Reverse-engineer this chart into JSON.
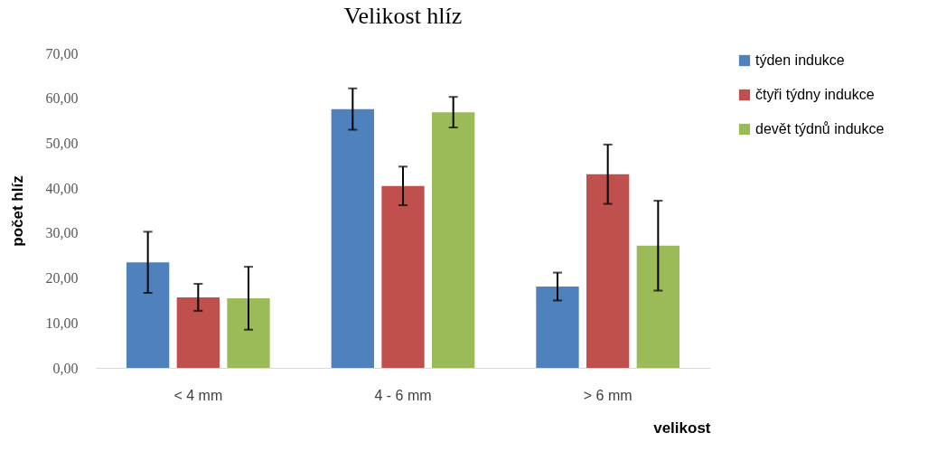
{
  "chart_data": {
    "type": "bar",
    "title": "Velikost hlíz",
    "xlabel": "velikost",
    "ylabel": "počet hlíz",
    "categories": [
      "< 4 mm",
      "4 - 6 mm",
      "> 6 mm"
    ],
    "series": [
      {
        "name": "týden indukce",
        "color": "#4f81bd",
        "values": [
          23.5,
          57.6,
          18.1
        ],
        "errors": [
          6.8,
          4.6,
          3.1
        ]
      },
      {
        "name": "čtyři týdny indukce",
        "color": "#c0504d",
        "values": [
          15.7,
          40.5,
          43.1
        ],
        "errors": [
          3.0,
          4.3,
          6.6
        ]
      },
      {
        "name": "devět týdnů indukce",
        "color": "#9bbb59",
        "values": [
          15.5,
          56.9,
          27.2
        ],
        "errors": [
          7.0,
          3.4,
          10.0
        ]
      }
    ],
    "ylim": [
      0,
      70
    ],
    "yticks": [
      {
        "value": 0,
        "label": "0,00"
      },
      {
        "value": 10,
        "label": "10,00"
      },
      {
        "value": 20,
        "label": "20,00"
      },
      {
        "value": 30,
        "label": "30,00"
      },
      {
        "value": 40,
        "label": "40,00"
      },
      {
        "value": 50,
        "label": "50,00"
      },
      {
        "value": 60,
        "label": "60,00"
      },
      {
        "value": 70,
        "label": "70,00"
      }
    ],
    "grid": false,
    "legend": "right"
  }
}
